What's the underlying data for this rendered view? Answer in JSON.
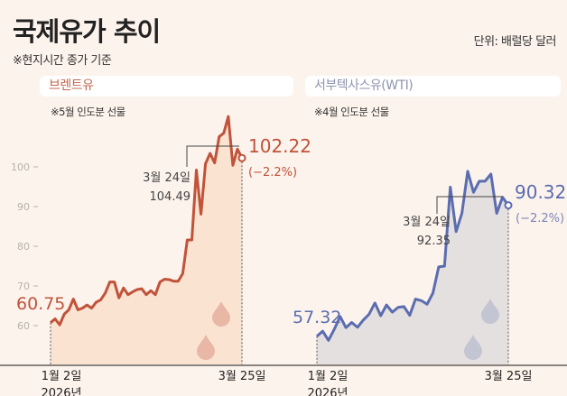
{
  "header": {
    "title": "국제유가 추이",
    "note": "※현지시간 종가 기준",
    "unit": "단위: 배럴당 달러"
  },
  "colors": {
    "background": "#fcf3ec",
    "brent": "#c0533a",
    "brent_fill": "#fbe3d2",
    "wti": "#5b6db0",
    "wti_fill": "#e4e0df",
    "axis": "#888888"
  },
  "chart_data": [
    {
      "type": "area",
      "title": "브렌트유",
      "subtitle": "※5월 인도분 선물",
      "ylim": [
        50,
        115
      ],
      "yticks": [
        "60",
        "70",
        "80",
        "90",
        "100"
      ],
      "x_start_label": "1월 2일",
      "x_start_year": "2026년",
      "x_end_label": "3월 25일",
      "values": [
        60.75,
        61.7,
        60.2,
        62.9,
        64.0,
        66.7,
        64.0,
        64.4,
        65.2,
        64.4,
        65.9,
        66.5,
        68.2,
        71.0,
        71.0,
        67.0,
        69.5,
        67.8,
        68.5,
        69.1,
        69.3,
        67.8,
        68.8,
        67.8,
        71.0,
        71.7,
        71.6,
        71.2,
        71.2,
        73.1,
        81.6,
        81.6,
        99.2,
        88.1,
        100.8,
        103.4,
        101.0,
        107.6,
        108.5,
        112.7,
        100.4,
        104.49,
        102.22
      ],
      "start_value": "60.75",
      "annotation": {
        "date": "3월 24일",
        "value": "104.49"
      },
      "end_value": "102.22",
      "end_change": "(−2.2%)",
      "icons": [
        "oil-drop-icon",
        "oil-drop-icon"
      ]
    },
    {
      "type": "area",
      "title": "서부텍사스유(WTI)",
      "subtitle": "※4월 인도분 선물",
      "ylim": [
        50,
        115
      ],
      "x_start_label": "1월 2일",
      "x_start_year": "2026년",
      "x_end_label": "3월 25일",
      "values": [
        57.32,
        58.6,
        56.3,
        59.1,
        62.3,
        59.5,
        60.8,
        59.6,
        61.4,
        62.9,
        65.7,
        62.5,
        65.2,
        63.4,
        64.6,
        64.8,
        62.6,
        66.7,
        66.3,
        65.4,
        68.2,
        74.8,
        75.0,
        94.9,
        83.7,
        88.3,
        98.9,
        93.6,
        96.4,
        96.4,
        98.2,
        88.3,
        92.35,
        90.32
      ],
      "start_value": "57.32",
      "annotation": {
        "date": "3월 24일",
        "value": "92.35"
      },
      "end_value": "90.32",
      "end_change": "(−2.2%)",
      "icons": [
        "oil-drop-icon",
        "oil-drop-icon"
      ]
    }
  ]
}
